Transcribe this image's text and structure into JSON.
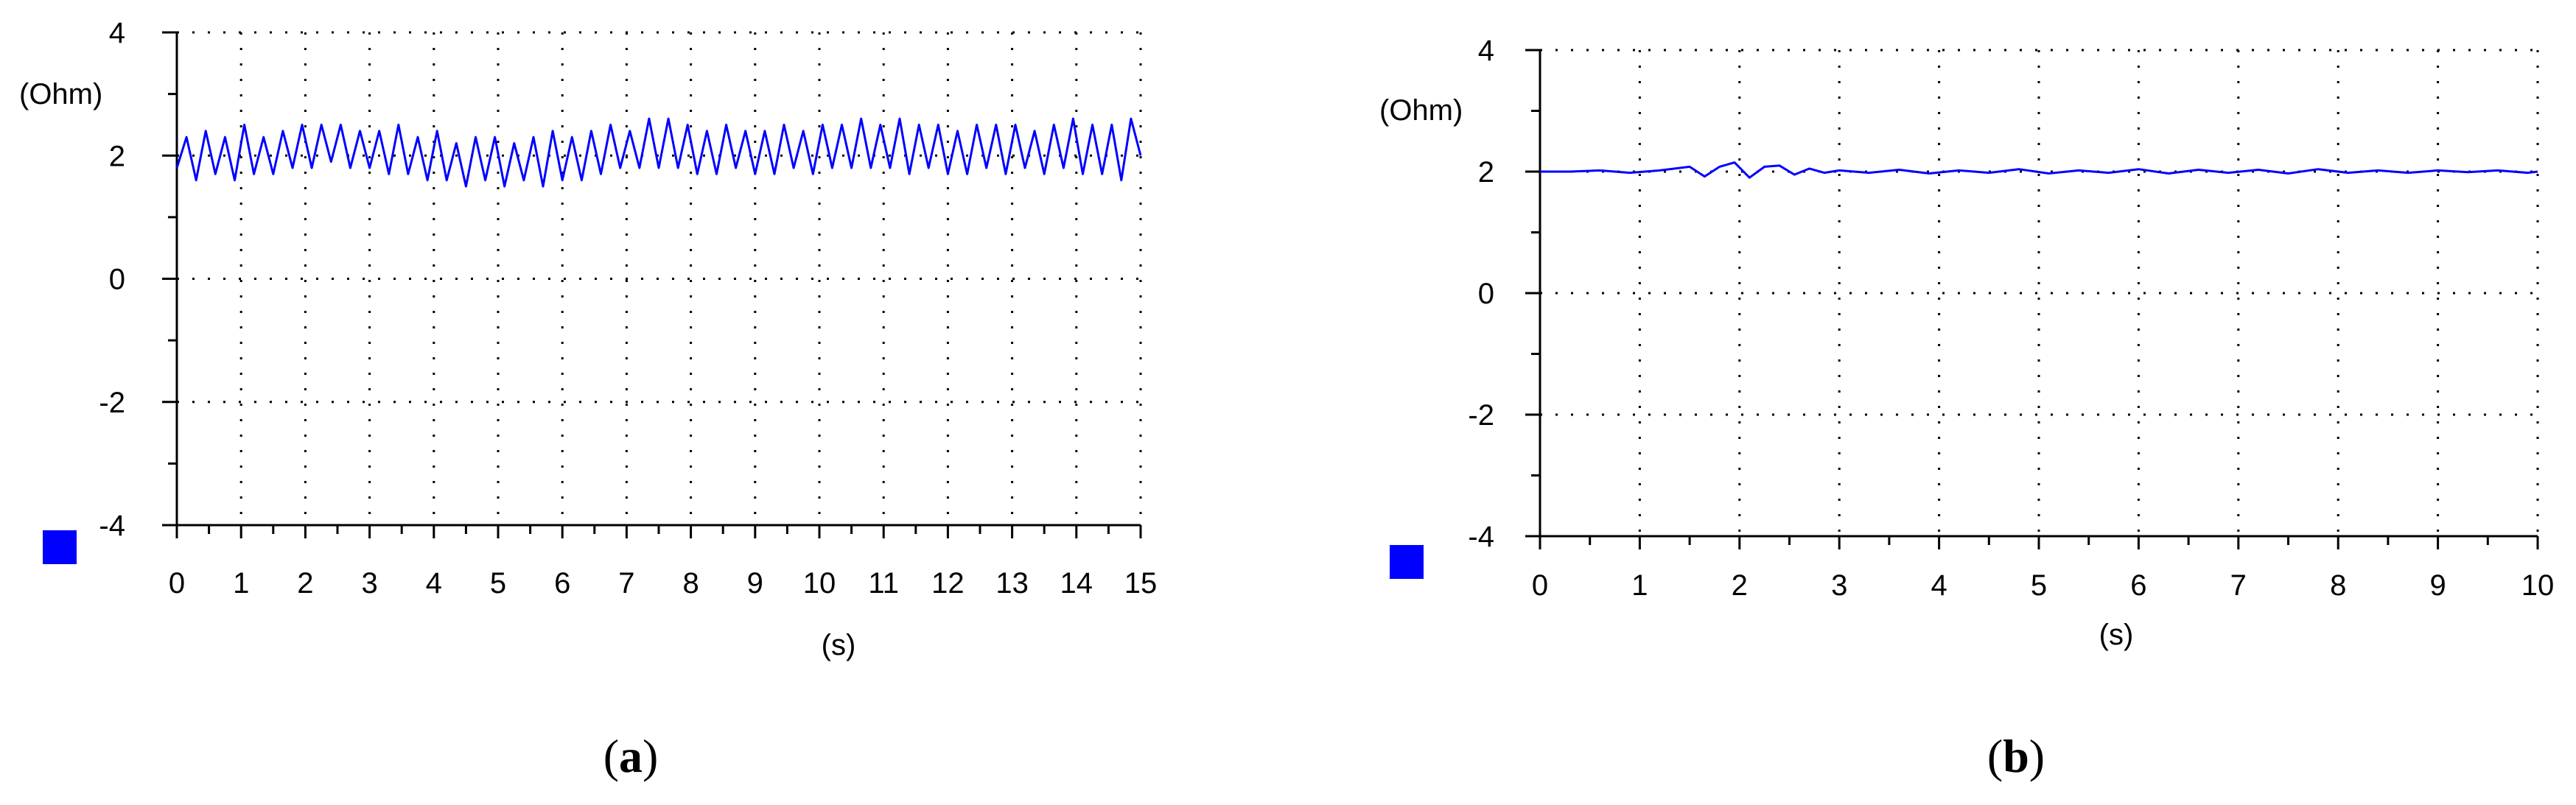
{
  "chart_data": [
    {
      "type": "line",
      "panel_label": "a",
      "ylabel": "(Ohm)",
      "xlabel": "(s)",
      "xlim": [
        0,
        15
      ],
      "ylim": [
        -4,
        4
      ],
      "x_ticks": [
        0,
        1,
        2,
        3,
        4,
        5,
        6,
        7,
        8,
        9,
        10,
        11,
        12,
        13,
        14,
        15
      ],
      "y_ticks": [
        4,
        2,
        0,
        -2,
        -4
      ],
      "grid": "dotted",
      "legend_marker_color": "#0000ff",
      "series": [
        {
          "color": "#0000ff",
          "x": [
            0,
            0.15,
            0.3,
            0.45,
            0.6,
            0.75,
            0.9,
            1.05,
            1.2,
            1.35,
            1.5,
            1.65,
            1.8,
            1.95,
            2.1,
            2.25,
            2.4,
            2.55,
            2.7,
            2.85,
            3.0,
            3.15,
            3.3,
            3.45,
            3.6,
            3.75,
            3.9,
            4.05,
            4.2,
            4.35,
            4.5,
            4.65,
            4.8,
            4.95,
            5.1,
            5.25,
            5.4,
            5.55,
            5.7,
            5.85,
            6.0,
            6.15,
            6.3,
            6.45,
            6.6,
            6.75,
            6.9,
            7.05,
            7.2,
            7.35,
            7.5,
            7.65,
            7.8,
            7.95,
            8.1,
            8.25,
            8.4,
            8.55,
            8.7,
            8.85,
            9.0,
            9.15,
            9.3,
            9.45,
            9.6,
            9.75,
            9.9,
            10.05,
            10.2,
            10.35,
            10.5,
            10.65,
            10.8,
            10.95,
            11.1,
            11.25,
            11.4,
            11.55,
            11.7,
            11.85,
            12.0,
            12.15,
            12.3,
            12.45,
            12.6,
            12.75,
            12.9,
            13.05,
            13.2,
            13.35,
            13.5,
            13.65,
            13.8,
            13.95,
            14.1,
            14.25,
            14.4,
            14.55,
            14.7,
            14.85,
            15.0
          ],
          "y": [
            1.8,
            2.3,
            1.6,
            2.4,
            1.7,
            2.3,
            1.6,
            2.5,
            1.7,
            2.3,
            1.7,
            2.4,
            1.8,
            2.5,
            1.8,
            2.5,
            1.9,
            2.5,
            1.8,
            2.4,
            1.8,
            2.4,
            1.7,
            2.5,
            1.7,
            2.3,
            1.6,
            2.4,
            1.6,
            2.2,
            1.5,
            2.3,
            1.6,
            2.3,
            1.5,
            2.2,
            1.6,
            2.3,
            1.5,
            2.4,
            1.6,
            2.3,
            1.6,
            2.4,
            1.7,
            2.5,
            1.8,
            2.4,
            1.8,
            2.6,
            1.8,
            2.6,
            1.8,
            2.5,
            1.7,
            2.4,
            1.7,
            2.5,
            1.8,
            2.4,
            1.7,
            2.4,
            1.7,
            2.5,
            1.8,
            2.4,
            1.7,
            2.5,
            1.8,
            2.5,
            1.8,
            2.6,
            1.8,
            2.5,
            1.8,
            2.6,
            1.7,
            2.5,
            1.8,
            2.5,
            1.7,
            2.4,
            1.7,
            2.5,
            1.8,
            2.5,
            1.7,
            2.5,
            1.8,
            2.4,
            1.7,
            2.5,
            1.8,
            2.6,
            1.7,
            2.5,
            1.7,
            2.5,
            1.6,
            2.6,
            2.0
          ]
        }
      ]
    },
    {
      "type": "line",
      "panel_label": "b",
      "ylabel": "(Ohm)",
      "xlabel": "(s)",
      "xlim": [
        0,
        10
      ],
      "ylim": [
        -4,
        4
      ],
      "x_ticks": [
        0,
        1,
        2,
        3,
        4,
        5,
        6,
        7,
        8,
        9,
        10
      ],
      "y_ticks": [
        4,
        2,
        0,
        -2,
        -4
      ],
      "grid": "dotted",
      "legend_marker_color": "#0000ff",
      "series": [
        {
          "color": "#0000ff",
          "x": [
            0,
            0.3,
            0.6,
            0.9,
            1.2,
            1.5,
            1.65,
            1.8,
            1.95,
            2.1,
            2.25,
            2.4,
            2.55,
            2.7,
            2.85,
            3.0,
            3.3,
            3.6,
            3.9,
            4.2,
            4.5,
            4.8,
            5.1,
            5.4,
            5.7,
            6.0,
            6.3,
            6.6,
            6.9,
            7.2,
            7.5,
            7.8,
            8.1,
            8.4,
            8.7,
            9.0,
            9.3,
            9.6,
            9.9,
            10.0
          ],
          "y": [
            2.0,
            2.0,
            2.02,
            1.98,
            2.02,
            2.08,
            1.92,
            2.08,
            2.15,
            1.9,
            2.08,
            2.1,
            1.95,
            2.05,
            1.98,
            2.02,
            1.98,
            2.03,
            1.97,
            2.02,
            1.98,
            2.04,
            1.97,
            2.02,
            1.98,
            2.04,
            1.97,
            2.03,
            1.98,
            2.03,
            1.97,
            2.04,
            1.98,
            2.02,
            1.98,
            2.02,
            1.99,
            2.02,
            1.98,
            2.0
          ]
        }
      ]
    }
  ]
}
